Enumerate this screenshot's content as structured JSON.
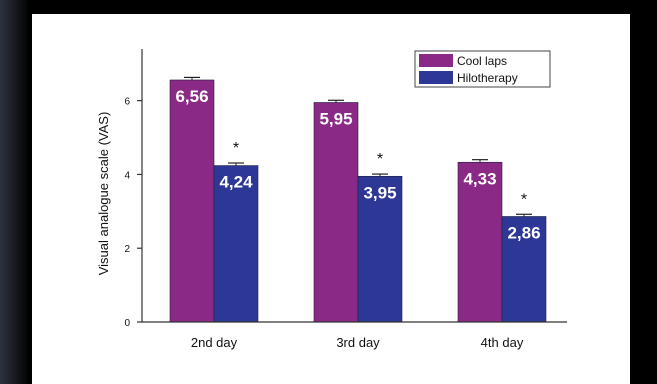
{
  "colors": {
    "cool_laps": "#8b2a86",
    "hilotherapy": "#2c3796",
    "axis": "#333333",
    "background": "#ffffff"
  },
  "chart_data": {
    "type": "bar",
    "title": "",
    "xlabel": "",
    "ylabel": "Visual analogue scale (VAS)",
    "ylim": [
      0,
      7.4
    ],
    "yticks": [
      "0",
      "2",
      "4",
      "6"
    ],
    "categories": [
      "2nd day",
      "3rd day",
      "4th day"
    ],
    "series": [
      {
        "name": "Cool laps",
        "values": [
          6.56,
          5.95,
          4.33
        ],
        "labels": [
          "6,56",
          "5,95",
          "4,33"
        ],
        "errors": [
          0.07,
          0.06,
          0.07
        ]
      },
      {
        "name": "Hilotherapy",
        "values": [
          4.24,
          3.95,
          2.86
        ],
        "labels": [
          "4,24",
          "3,95",
          "2,86"
        ],
        "errors": [
          0.07,
          0.06,
          0.06
        ]
      }
    ],
    "significance_markers": [
      "*",
      "*",
      "*"
    ],
    "legend_position": "top-right",
    "grid": false
  }
}
